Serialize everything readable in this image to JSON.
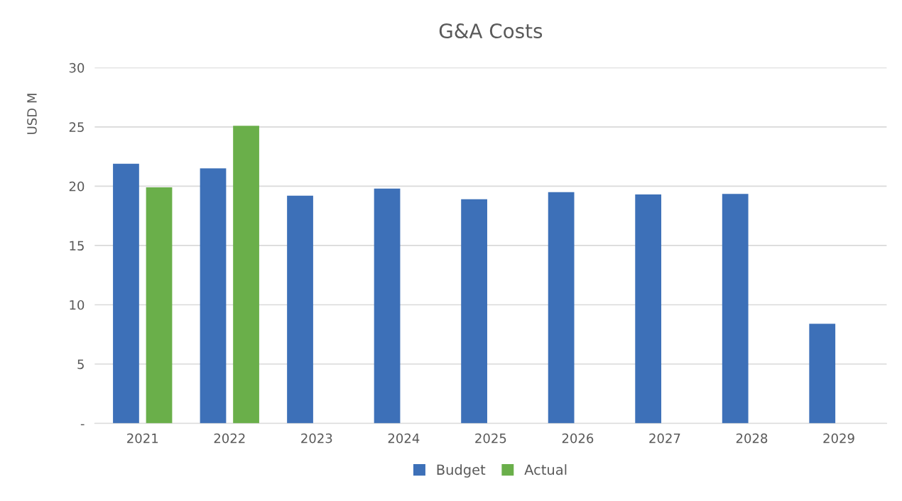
{
  "chart_data": {
    "type": "bar",
    "title": "G&A Costs",
    "ylabel": "USD M",
    "categories": [
      "2021",
      "2022",
      "2023",
      "2024",
      "2025",
      "2026",
      "2027",
      "2028",
      "2029"
    ],
    "series": [
      {
        "name": "Budget",
        "color": "#3d70b8",
        "values": [
          21.9,
          21.5,
          19.2,
          19.8,
          18.9,
          19.5,
          19.3,
          19.35,
          8.4
        ]
      },
      {
        "name": "Actual",
        "color": "#6aaf4a",
        "values": [
          19.9,
          25.1,
          null,
          null,
          null,
          null,
          null,
          null,
          null
        ]
      }
    ],
    "ylim": [
      0,
      30
    ],
    "yticks": [
      {
        "value": 0,
        "label": "-"
      },
      5,
      10,
      15,
      20,
      25,
      30
    ],
    "grid": "y",
    "legend": "bottom"
  }
}
